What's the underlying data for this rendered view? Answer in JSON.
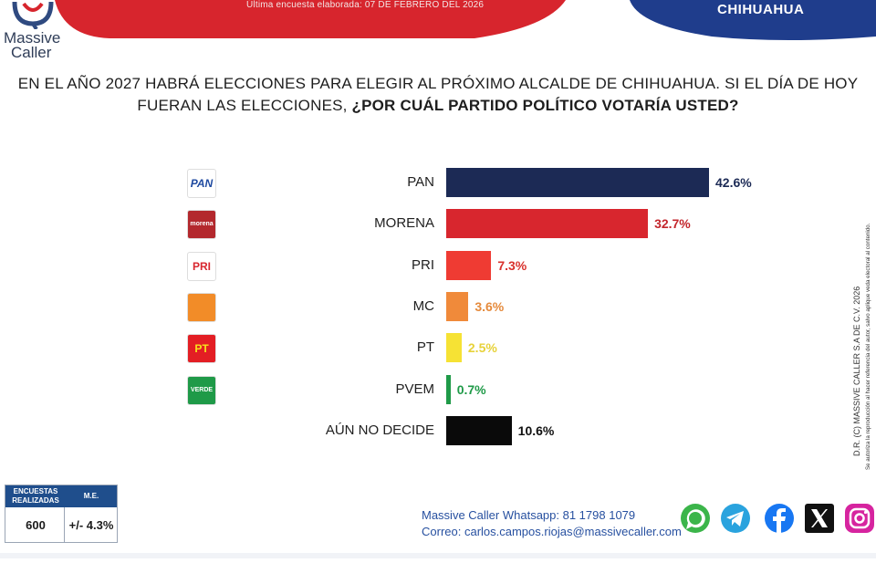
{
  "header": {
    "brand_line1": "Massive",
    "brand_line2": "Caller",
    "survey_date": "Última encuesta elaborada: 07 DE FEBRERO DEL 2026",
    "city": "CHIHUAHUA",
    "colors": {
      "red": "#d7252d",
      "navy": "#1f3d8c"
    }
  },
  "question": {
    "line1": "EN EL AÑO 2027 HABRÁ ELECCIONES PARA ELEGIR AL PRÓXIMO ALCALDE DE CHIHUAHUA. SI EL DÍA DE HOY",
    "line2_plain": "FUERAN LAS ELECCIONES,",
    "line2_bold": "¿POR CUÁL PARTIDO POLÍTICO VOTARÍA USTED?"
  },
  "chart_data": {
    "type": "bar",
    "orientation": "horizontal",
    "categories": [
      "PAN",
      "MORENA",
      "PRI",
      "MC",
      "PT",
      "PVEM",
      "AÚN NO DECIDE"
    ],
    "values": [
      42.6,
      32.7,
      7.3,
      3.6,
      2.5,
      0.7,
      10.6
    ],
    "value_labels": [
      "42.6%",
      "32.7%",
      "7.3%",
      "3.6%",
      "2.5%",
      "0.7%",
      "10.6%"
    ],
    "bar_colors": [
      "#1c2a55",
      "#d8262e",
      "#ef3b33",
      "#f08a3a",
      "#f6e234",
      "#1f9a48",
      "#0a0a0a"
    ],
    "label_colors": [
      "#1c2a55",
      "#c3262c",
      "#d8312c",
      "#e58a3c",
      "#e7d23a",
      "#1f9a48",
      "#111111"
    ],
    "xlim": [
      0,
      42.6
    ],
    "grid": false,
    "legend": "none"
  },
  "party_logos": [
    {
      "icon": "pan-logo-icon",
      "text": "PAN",
      "bg": "#ffffff",
      "fg": "#1f4aa0"
    },
    {
      "icon": "morena-logo-icon",
      "text": "morena",
      "bg": "#b3282d",
      "fg": "#ffffff"
    },
    {
      "icon": "pri-logo-icon",
      "text": "PRI",
      "bg": "#ffffff",
      "fg": "#d8262e"
    },
    {
      "icon": "mc-logo-icon",
      "text": "",
      "bg": "#f28c28",
      "fg": "#ffffff"
    },
    {
      "icon": "pt-logo-icon",
      "text": "PT",
      "bg": "#e31e24",
      "fg": "#f7e21b"
    },
    {
      "icon": "pvem-logo-icon",
      "text": "VERDE",
      "bg": "#1f9a48",
      "fg": "#ffffff"
    }
  ],
  "stats": {
    "col1_header": "ENCUESTAS REALIZADAS",
    "col2_header": "M.E.",
    "col1_value": "600",
    "col2_value": "+/- 4.3%"
  },
  "contact": {
    "whatsapp": "Massive Caller Whatsapp: 81 1798 1079",
    "email": "Correo: carlos.campos.riojas@massivecaller.com"
  },
  "social": [
    {
      "icon": "whatsapp-icon",
      "color": "#3bb54a"
    },
    {
      "icon": "telegram-icon",
      "color": "#2aa3de"
    },
    {
      "icon": "facebook-icon",
      "color": "#1877f2"
    },
    {
      "icon": "x-icon",
      "color": "#111111"
    },
    {
      "icon": "instagram-icon",
      "color": "#d6249f"
    }
  ],
  "side_note": {
    "line1": "D.R. (C) MASSIVE CALLER S.A DE C.V. 2026",
    "line2": "Se autoriza la reproducción al hacer referencia del autor, salvo aplique veda electoral al contenido."
  }
}
